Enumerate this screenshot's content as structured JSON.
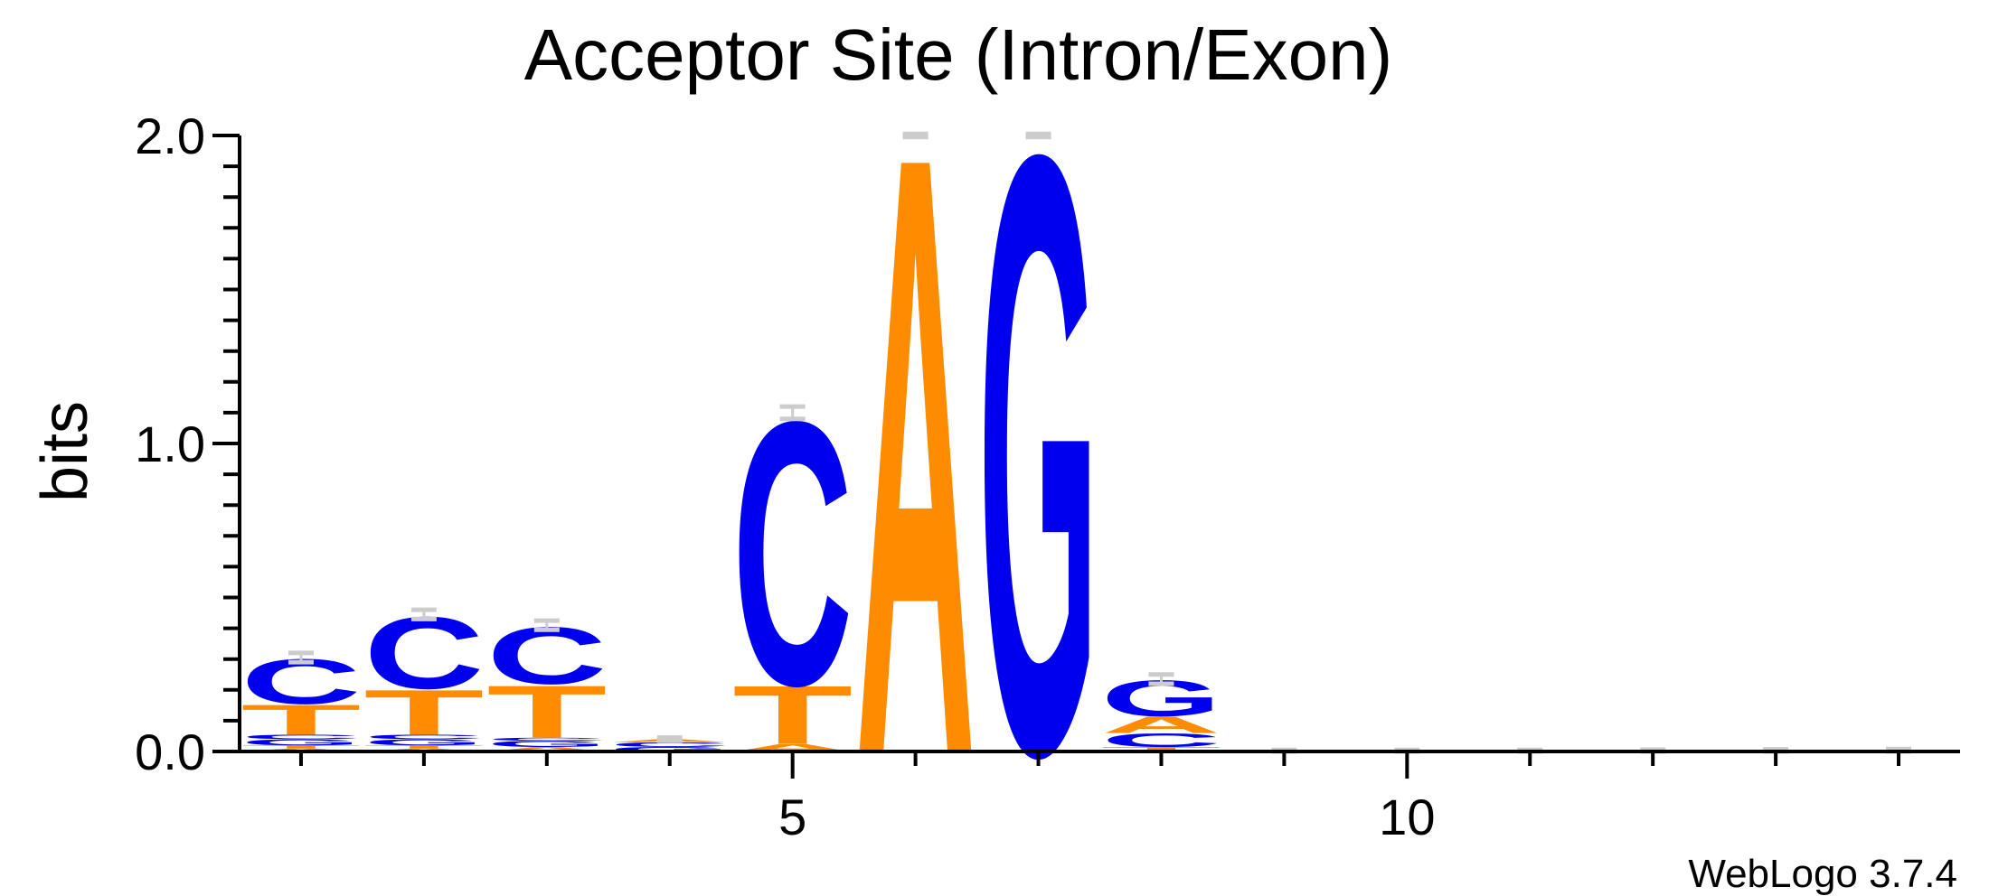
{
  "chart_data": {
    "type": "sequence-logo",
    "title": "Acceptor Site (Intron/Exon)",
    "ylabel": "bits",
    "ylim": [
      0,
      2.0
    ],
    "yticks": [
      "0.0",
      "1.0",
      "2.0"
    ],
    "xlim": [
      0.5,
      14.5
    ],
    "xticks": [
      {
        "value": 5,
        "label": "5"
      },
      {
        "value": 10,
        "label": "10"
      }
    ],
    "footer": "WebLogo 3.7.4",
    "colors": {
      "A": "#ff8c00",
      "T": "#ff8c00",
      "C": "#0000ee",
      "G": "#0000ee",
      "errorbar": "#cccccc"
    },
    "positions": [
      {
        "pos": 1,
        "stack": [
          {
            "l": "A",
            "h": 0.01
          },
          {
            "l": "T",
            "h": 0.01
          },
          {
            "l": "G",
            "h": 0.02
          },
          {
            "l": "C",
            "h": 0.015
          },
          {
            "l": "T",
            "h": 0.1
          },
          {
            "l": "C",
            "h": 0.15
          }
        ],
        "err": 0.03
      },
      {
        "pos": 2,
        "stack": [
          {
            "l": "A",
            "h": 0.01
          },
          {
            "l": "T",
            "h": 0.01
          },
          {
            "l": "G",
            "h": 0.02
          },
          {
            "l": "C",
            "h": 0.015
          },
          {
            "l": "T",
            "h": 0.15
          },
          {
            "l": "C",
            "h": 0.24
          }
        ],
        "err": 0.03
      },
      {
        "pos": 3,
        "stack": [
          {
            "l": "A",
            "h": 0.015
          },
          {
            "l": "G",
            "h": 0.02
          },
          {
            "l": "C",
            "h": 0.01
          },
          {
            "l": "T",
            "h": 0.175
          },
          {
            "l": "C",
            "h": 0.19
          }
        ],
        "err": 0.03
      },
      {
        "pos": 4,
        "stack": [
          {
            "l": "G",
            "h": 0.015
          },
          {
            "l": "C",
            "h": 0.015
          },
          {
            "l": "A",
            "h": 0.01
          }
        ],
        "err": 0.01
      },
      {
        "pos": 5,
        "stack": [
          {
            "l": "A",
            "h": 0.025
          },
          {
            "l": "T",
            "h": 0.195
          },
          {
            "l": "C",
            "h": 0.88
          }
        ],
        "err": 0.04
      },
      {
        "pos": 6,
        "stack": [
          {
            "l": "A",
            "h": 2.0
          }
        ],
        "err": 0.01
      },
      {
        "pos": 7,
        "stack": [
          {
            "l": "G",
            "h": 2.0
          }
        ],
        "err": 0.01
      },
      {
        "pos": 8,
        "stack": [
          {
            "l": "T",
            "h": 0.015
          },
          {
            "l": "C",
            "h": 0.045
          },
          {
            "l": "A",
            "h": 0.055
          },
          {
            "l": "G",
            "h": 0.12
          }
        ],
        "err": 0.03
      },
      {
        "pos": 9,
        "stack": [],
        "err": 0.01
      },
      {
        "pos": 10,
        "stack": [],
        "err": 0.01
      },
      {
        "pos": 11,
        "stack": [],
        "err": 0.01
      },
      {
        "pos": 12,
        "stack": [],
        "err": 0.012
      },
      {
        "pos": 13,
        "stack": [],
        "err": 0.014
      },
      {
        "pos": 14,
        "stack": [],
        "err": 0.016
      }
    ]
  }
}
